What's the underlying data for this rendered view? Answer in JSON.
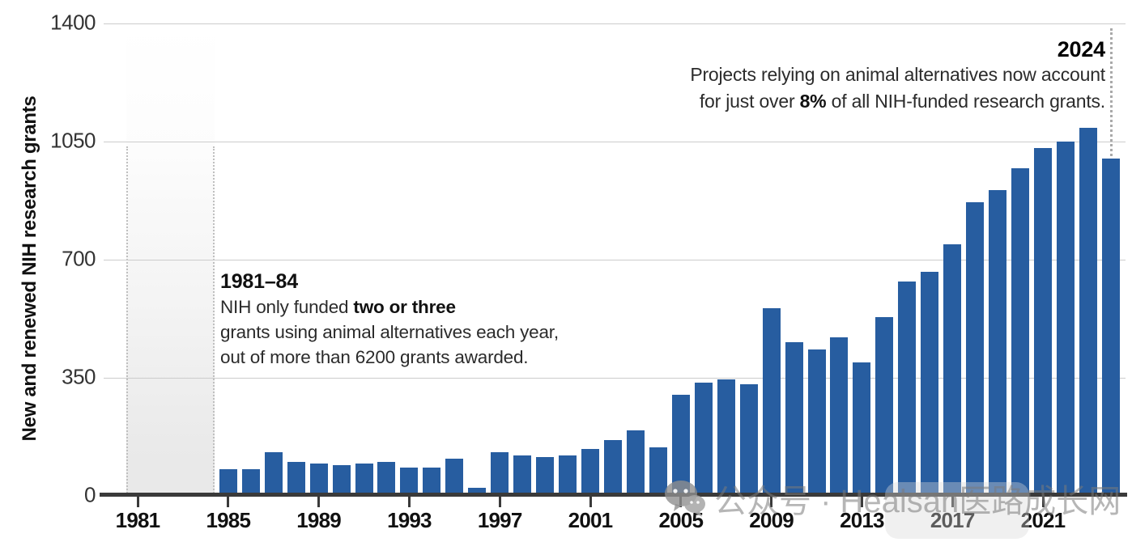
{
  "chart_data": {
    "type": "bar",
    "title": "",
    "ylabel": "New and renewed NIH research grants",
    "xlabel": "",
    "ylim": [
      0,
      1400
    ],
    "yticks": [
      0,
      350,
      700,
      1050,
      1400
    ],
    "xticks": [
      1981,
      1985,
      1989,
      1993,
      1997,
      2001,
      2005,
      2009,
      2013,
      2017,
      2021
    ],
    "grid": true,
    "legend_position": "none",
    "x": [
      1985,
      1986,
      1987,
      1988,
      1989,
      1990,
      1991,
      1992,
      1993,
      1994,
      1995,
      1996,
      1997,
      1998,
      1999,
      2000,
      2001,
      2002,
      2003,
      2004,
      2005,
      2006,
      2007,
      2008,
      2009,
      2010,
      2011,
      2012,
      2013,
      2014,
      2015,
      2016,
      2017,
      2018,
      2019,
      2020,
      2021,
      2022,
      2023,
      2024
    ],
    "values": [
      80,
      80,
      130,
      100,
      95,
      90,
      95,
      100,
      85,
      85,
      110,
      25,
      130,
      120,
      115,
      120,
      140,
      165,
      195,
      145,
      300,
      335,
      345,
      330,
      555,
      455,
      435,
      470,
      395,
      530,
      635,
      665,
      745,
      870,
      905,
      970,
      1030,
      1050,
      1090,
      1000
    ],
    "shaded_region": {
      "x_start": 1981,
      "x_end": 1984
    },
    "reference_line_year": 2024
  },
  "annotations": {
    "early": {
      "title": "1981–84",
      "line1_pre": "NIH only funded ",
      "line1_bold": "two or three",
      "line2": "grants using animal alternatives each year,",
      "line3": "out of more than 6200 grants awarded."
    },
    "latest": {
      "title": "2024",
      "line1": "Projects relying on animal alternatives now account",
      "line2_pre": "for just over ",
      "line2_bold": "8%",
      "line2_post": " of all NIH-funded research grants."
    }
  },
  "watermark": {
    "text": "公众号 · Healsan医路成长网",
    "icon": "wechat-chat-bubbles-icon"
  },
  "colors": {
    "bar": "#275da0",
    "axis": "#3a3a3a",
    "gridline": "#cccccc",
    "shade": "#e9e9e9",
    "text": "#1a1a1a",
    "watermark": "rgba(122,122,122,0.55)"
  }
}
